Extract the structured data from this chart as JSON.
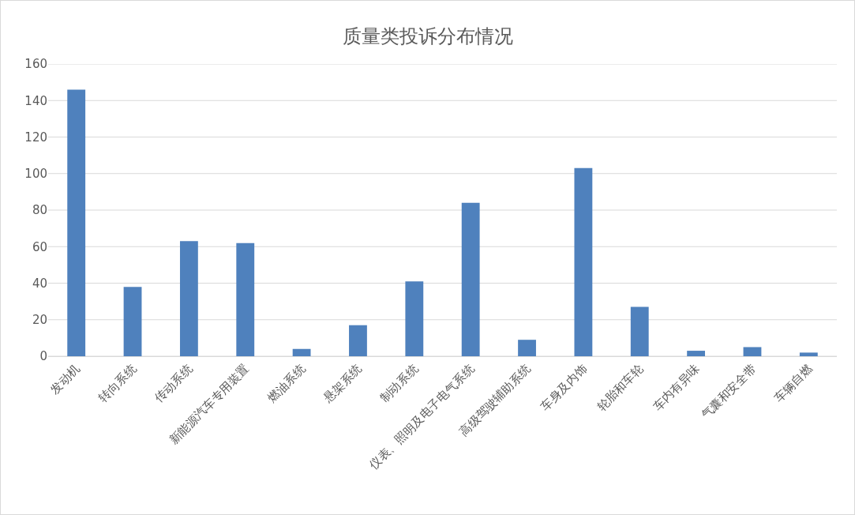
{
  "chart_data": {
    "type": "bar",
    "title": "质量类投诉分布情况",
    "categories": [
      "发动机",
      "转向系统",
      "传动系统",
      "新能源汽车专用装置",
      "燃油系统",
      "悬架系统",
      "制动系统",
      "仪表、照明及电子电气系统",
      "高级驾驶辅助系统",
      "车身及内饰",
      "轮胎和车轮",
      "车内有异味",
      "气囊和安全带",
      "车辆自燃"
    ],
    "values": [
      146,
      38,
      63,
      62,
      4,
      17,
      41,
      84,
      9,
      103,
      27,
      3,
      5,
      2
    ],
    "color": "#4f81bd",
    "ylim": [
      0,
      160
    ],
    "yticks": [
      0,
      20,
      40,
      60,
      80,
      100,
      120,
      140,
      160
    ],
    "grid": "y"
  }
}
